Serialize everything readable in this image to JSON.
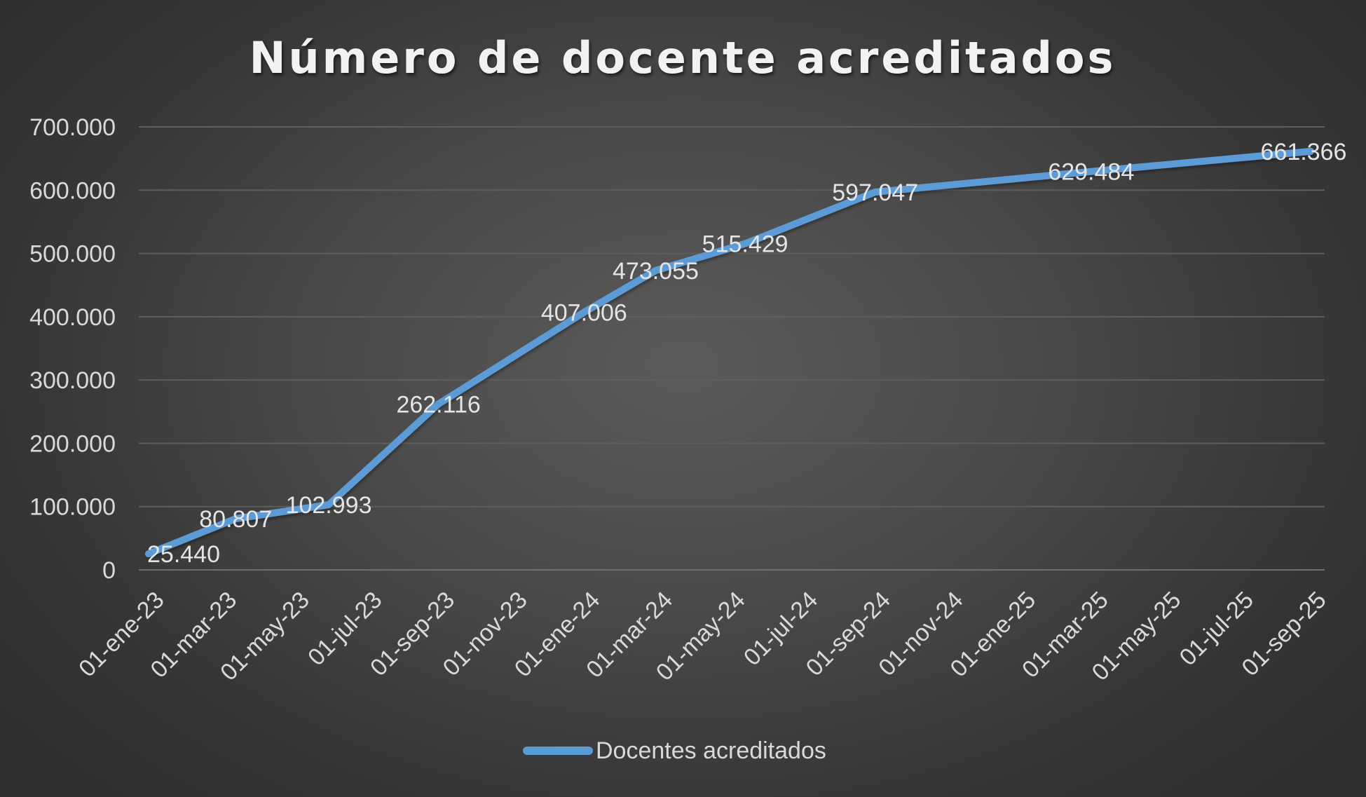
{
  "chart_data": {
    "type": "line",
    "title": "Número de docente acreditados",
    "xlabel": "",
    "ylabel": "",
    "x_tick_labels": [
      "01-ene-23",
      "01-mar-23",
      "01-may-23",
      "01-jul-23",
      "01-sep-23",
      "01-nov-23",
      "01-ene-24",
      "01-mar-24",
      "01-may-24",
      "01-jul-24",
      "01-sep-24",
      "01-nov-24",
      "01-ene-25",
      "01-mar-25",
      "01-may-25",
      "01-jul-25",
      "01-sep-25"
    ],
    "xlim": [
      "2023-01-01",
      "2025-09-01"
    ],
    "y_tick_labels": [
      "0",
      "100.000",
      "200.000",
      "300.000",
      "400.000",
      "500.000",
      "600.000",
      "700.000"
    ],
    "y_ticks": [
      0,
      100000,
      200000,
      300000,
      400000,
      500000,
      600000,
      700000
    ],
    "ylim": [
      0,
      700000
    ],
    "grid": true,
    "legend_position": "bottom",
    "series": [
      {
        "name": "Docentes acreditados",
        "color": "#5b9bd5",
        "points": [
          {
            "x": "2023-01-01",
            "y": 25440,
            "label": "25.440"
          },
          {
            "x": "2023-03-15",
            "y": 80807,
            "label": "80.807"
          },
          {
            "x": "2023-06-01",
            "y": 102993,
            "label": "102.993"
          },
          {
            "x": "2023-09-01",
            "y": 262116,
            "label": "262.116"
          },
          {
            "x": "2024-01-01",
            "y": 407006,
            "label": "407.006"
          },
          {
            "x": "2024-03-01",
            "y": 473055,
            "label": "473.055"
          },
          {
            "x": "2024-05-15",
            "y": 515429,
            "label": "515.429"
          },
          {
            "x": "2024-09-01",
            "y": 597047,
            "label": "597.047"
          },
          {
            "x": "2025-03-01",
            "y": 629484,
            "label": "629.484"
          },
          {
            "x": "2025-09-01",
            "y": 661366,
            "label": "661.366"
          }
        ]
      }
    ]
  }
}
